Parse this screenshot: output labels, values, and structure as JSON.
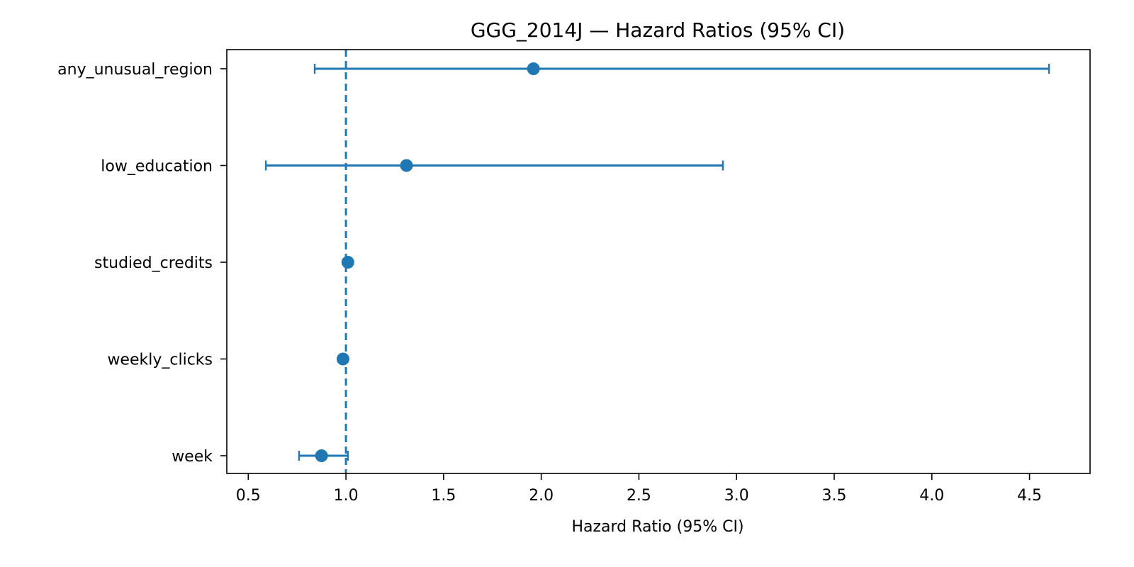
{
  "chart_data": {
    "type": "forest",
    "title": "GGG_2014J — Hazard Ratios (95% CI)",
    "xlabel": "Hazard Ratio (95% CI)",
    "ylabel": "",
    "xlim": [
      0.39,
      4.81
    ],
    "xticks": [
      0.5,
      1.0,
      1.5,
      2.0,
      2.5,
      3.0,
      3.5,
      4.0,
      4.5
    ],
    "xtick_labels": [
      "0.5",
      "1.0",
      "1.5",
      "2.0",
      "2.5",
      "3.0",
      "3.5",
      "4.0",
      "4.5"
    ],
    "reference_line": 1.0,
    "grid": false,
    "color": "#1f77b4",
    "rows": [
      {
        "label": "any_unusual_region",
        "hr": 1.96,
        "lower": 0.84,
        "upper": 4.6
      },
      {
        "label": "low_education",
        "hr": 1.31,
        "lower": 0.59,
        "upper": 2.93
      },
      {
        "label": "studied_credits",
        "hr": 1.01,
        "lower": 1.0,
        "upper": 1.02
      },
      {
        "label": "weekly_clicks",
        "hr": 0.985,
        "lower": 0.98,
        "upper": 0.99
      },
      {
        "label": "week",
        "hr": 0.875,
        "lower": 0.76,
        "upper": 1.01
      }
    ]
  }
}
